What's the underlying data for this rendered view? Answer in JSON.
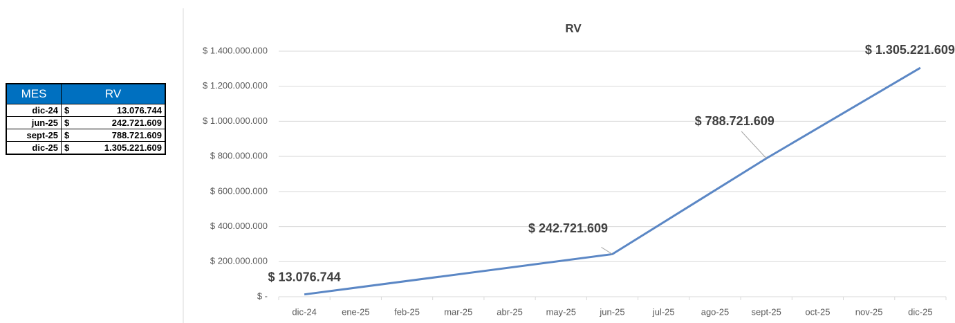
{
  "table": {
    "headers": [
      "MES",
      "RV"
    ],
    "rows": [
      [
        "dic-24",
        "$",
        "13.076.744"
      ],
      [
        "jun-25",
        "$",
        "242.721.609"
      ],
      [
        "sept-25",
        "$",
        "788.721.609"
      ],
      [
        "dic-25",
        "$",
        "1.305.221.609"
      ]
    ]
  },
  "chart_data": {
    "type": "line",
    "title": "RV",
    "categories": [
      "dic-24",
      "ene-25",
      "feb-25",
      "mar-25",
      "abr-25",
      "may-25",
      "jun-25",
      "jul-25",
      "ago-25",
      "sept-25",
      "oct-25",
      "nov-25",
      "dic-25"
    ],
    "series": [
      {
        "name": "RV",
        "color": "#5b87c5",
        "x": [
          "dic-24",
          "jun-25",
          "sept-25",
          "dic-25"
        ],
        "values": [
          13076744,
          242721609,
          788721609,
          1305221609
        ],
        "value_labels": [
          "$ 13.076.744",
          "$ 242.721.609",
          "$ 788.721.609",
          "$ 1.305.221.609"
        ]
      }
    ],
    "ylim": [
      0,
      1400000000
    ],
    "yticks": [
      {
        "value": 0,
        "label": "$ -"
      },
      {
        "value": 200000000,
        "label": "$ 200.000.000"
      },
      {
        "value": 400000000,
        "label": "$ 400.000.000"
      },
      {
        "value": 600000000,
        "label": "$ 600.000.000"
      },
      {
        "value": 800000000,
        "label": "$ 800.000.000"
      },
      {
        "value": 1000000000,
        "label": "$ 1.000.000.000"
      },
      {
        "value": 1200000000,
        "label": "$ 1.200.000.000"
      },
      {
        "value": 1400000000,
        "label": "$ 1.400.000.000"
      }
    ],
    "grid": true
  }
}
